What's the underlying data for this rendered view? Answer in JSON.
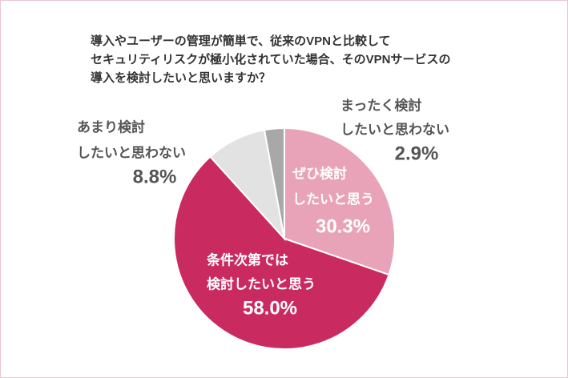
{
  "chart_data": {
    "type": "pie",
    "title": [
      "導入やユーザーの管理が簡単で、従来のVPNと比較して",
      "セキュリティリスクが極小化されていた場合、そのVPNサービスの",
      "導入を検討したいと思いますか？"
    ],
    "categories": [
      [
        "ぜひ検討",
        "したいと思う"
      ],
      [
        "条件次第では",
        "検討したいと思う"
      ],
      [
        "あまり検討",
        "したいと思わない"
      ],
      [
        "まったく検討",
        "したいと思わない"
      ]
    ],
    "values": [
      30.3,
      58.0,
      8.8,
      2.9
    ],
    "value_labels": [
      "30.3%",
      "58.0%",
      "8.8%",
      "2.9%"
    ],
    "colors": [
      "#e8a3b9",
      "#c92a5f",
      "#e2e2e2",
      "#a8a8a8"
    ]
  }
}
